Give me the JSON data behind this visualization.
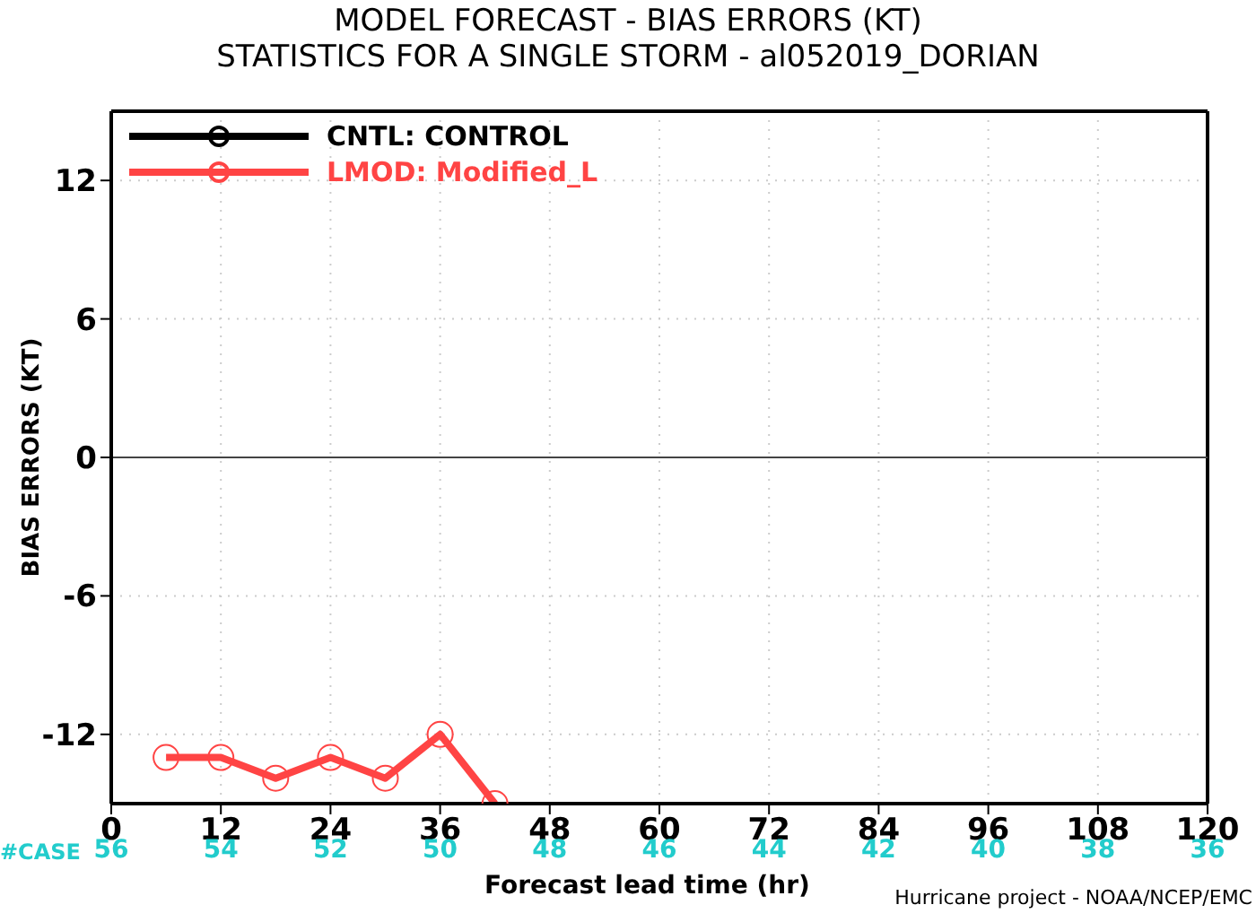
{
  "chart_data": {
    "type": "line",
    "title": "MODEL FORECAST - BIAS ERRORS (KT)",
    "subtitle": "STATISTICS FOR A SINGLE STORM - al052019_DORIAN",
    "xlabel": "Forecast lead time (hr)",
    "ylabel": "BIAS ERRORS (KT)",
    "x": [
      6,
      12,
      18,
      24,
      30,
      36,
      42
    ],
    "series": [
      {
        "name": "CNTL: CONTROL",
        "color": "#000000",
        "values": [
          null,
          null,
          null,
          null,
          null,
          null,
          null
        ]
      },
      {
        "name": "LMOD: Modified_L",
        "color": "#ff4444",
        "values": [
          -13,
          -13,
          -13.9,
          -13,
          -13.9,
          -12,
          -15
        ]
      }
    ],
    "xlim": [
      0,
      120
    ],
    "xticks": [
      0,
      12,
      24,
      36,
      48,
      60,
      72,
      84,
      96,
      108,
      120
    ],
    "ylim": [
      -15,
      15
    ],
    "yticks": [
      -12,
      -6,
      0,
      6,
      12
    ],
    "ref_lines": [
      {
        "axis": "y",
        "value": 0,
        "color": "#444444"
      }
    ],
    "grid": true,
    "legend": "top left",
    "marker": "circle",
    "line_style": "solid",
    "annotations": [
      "#CASE",
      "56",
      "54",
      "52",
      "50",
      "48",
      "46",
      "44",
      "42",
      "40",
      "38",
      "36",
      "Hurricane project - NOAA/NCEP/EMC"
    ]
  }
}
